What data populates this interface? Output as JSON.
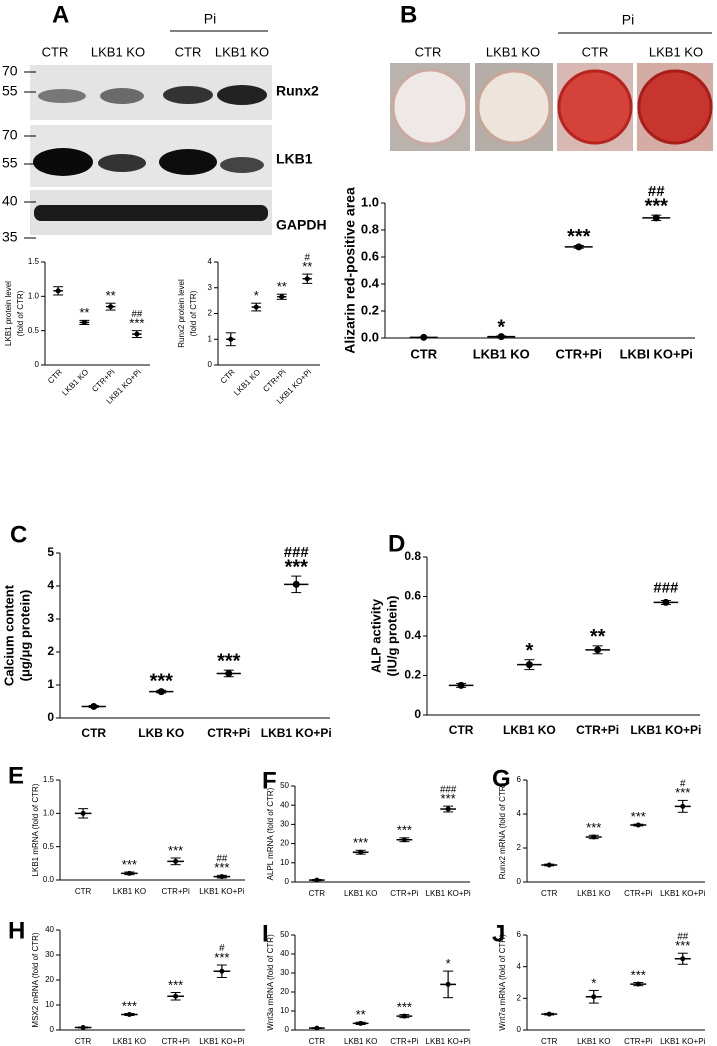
{
  "blot": {
    "letter": "A",
    "treatment": "Pi",
    "lanes": [
      "CTR",
      "LKB1 KO",
      "CTR",
      "LKB1 KO"
    ],
    "proteins": [
      "Runx2",
      "LKB1",
      "GAPDH"
    ],
    "markers": [
      "70",
      "55",
      "70",
      "55",
      "40",
      "35"
    ]
  },
  "wells": {
    "letter": "B",
    "treatment": "Pi",
    "lanes": [
      "CTR",
      "LKB1 KO",
      "CTR",
      "LKB1 KO"
    ]
  },
  "chart_data": [
    {
      "type": "dot",
      "ylabel": [
        "LKB1 protein level",
        "(fold of CTR)"
      ],
      "categories": [
        "CTR",
        "LKB1 KO",
        "CTR+Pi",
        "LKB1 KO+Pi"
      ],
      "values": [
        1.08,
        0.62,
        0.85,
        0.45
      ],
      "errors": [
        0.06,
        0.03,
        0.05,
        0.05
      ],
      "ylim": [
        0,
        1.5
      ],
      "yticks": [
        0,
        0.5,
        {
          "value": 1,
          "label": "1.0"
        },
        1.5
      ],
      "stars": [
        null,
        "**",
        "**",
        "***"
      ],
      "hashes": [
        null,
        null,
        null,
        "##"
      ],
      "color": "#000000"
    },
    {
      "type": "dot",
      "ylabel": [
        "Runx2 protein level",
        "(fold of CTR)"
      ],
      "categories": [
        "CTR",
        "LKB1 KO",
        "CTR+Pi",
        "LKB1 KO+Pi"
      ],
      "values": [
        1.0,
        2.25,
        2.65,
        3.35
      ],
      "errors": [
        0.25,
        0.15,
        0.1,
        0.18
      ],
      "ylim": [
        0,
        4
      ],
      "yticks": [
        0,
        1,
        2,
        3,
        4
      ],
      "stars": [
        null,
        "*",
        "**",
        "**"
      ],
      "hashes": [
        null,
        null,
        null,
        "#"
      ],
      "color": "#000000"
    },
    {
      "type": "dot",
      "ylabel": [
        "Alizarin red-positive area"
      ],
      "categories": [
        "CTR",
        "LKB1 KO",
        "CTR+Pi",
        "LKBI KO+Pi"
      ],
      "values": [
        0.005,
        0.01,
        0.675,
        0.89
      ],
      "errors": [
        0.002,
        0.005,
        0.01,
        0.02
      ],
      "ylim": [
        0,
        1.0
      ],
      "yticks": [
        {
          "value": 0,
          "label": "0.0"
        },
        0.2,
        0.4,
        0.6,
        0.8,
        {
          "value": 1,
          "label": "1.0"
        }
      ],
      "stars": [
        null,
        "*",
        "***",
        "***"
      ],
      "hashes": [
        null,
        null,
        null,
        "##"
      ],
      "color": "#000000"
    },
    {
      "type": "dot",
      "letter": "C",
      "ylabel": [
        "Calcium content",
        "(μg/μg protein)"
      ],
      "categories": [
        "CTR",
        "LKB KO",
        "CTR+Pi",
        "LKB1 KO+Pi"
      ],
      "values": [
        0.35,
        0.8,
        1.35,
        4.05
      ],
      "errors": [
        0.03,
        0.04,
        0.1,
        0.25
      ],
      "ylim": [
        0,
        5
      ],
      "yticks": [
        0,
        1,
        2,
        3,
        4,
        5
      ],
      "stars": [
        null,
        "***",
        "***",
        "***"
      ],
      "hashes": [
        null,
        null,
        null,
        "###"
      ],
      "color": "#000000"
    },
    {
      "type": "dot",
      "letter": "D",
      "ylabel": [
        "ALP activity",
        "(IU/g protein)"
      ],
      "categories": [
        "CTR",
        "LKB1 KO",
        "CTR+Pi",
        "LKB1 KO+Pi"
      ],
      "values": [
        0.15,
        0.255,
        0.33,
        0.57
      ],
      "errors": [
        0.01,
        0.025,
        0.02,
        0.01
      ],
      "ylim": [
        0,
        0.8
      ],
      "yticks": [
        0,
        0.2,
        0.4,
        0.6,
        0.8
      ],
      "stars": [
        null,
        "*",
        "**",
        null
      ],
      "hashes": [
        null,
        null,
        null,
        "###"
      ],
      "color": "#000000"
    },
    {
      "type": "dot",
      "letter": "E",
      "ylabel": [
        "LKB1 mRNA (fold of CTR)"
      ],
      "categories": [
        "CTR",
        "LKB1 KO",
        "CTR+Pi",
        "LKB1 KO+Pi"
      ],
      "values": [
        1.0,
        0.1,
        0.28,
        0.05
      ],
      "errors": [
        0.07,
        0.02,
        0.05,
        0.02
      ],
      "ylim": [
        0,
        1.5
      ],
      "yticks": [
        {
          "value": 0,
          "label": "0.0"
        },
        0.5,
        {
          "value": 1,
          "label": "1.0"
        },
        1.5
      ],
      "stars": [
        null,
        "***",
        "***",
        "***"
      ],
      "hashes": [
        null,
        null,
        null,
        "##"
      ],
      "color": "#000000"
    },
    {
      "type": "dot",
      "letter": "F",
      "ylabel": [
        "ALPL mRNA (fold of CTR)"
      ],
      "categories": [
        "CTR",
        "LKB1 KO",
        "CTR+Pi",
        "LKB1 KO+Pi"
      ],
      "values": [
        1,
        15.5,
        22,
        38
      ],
      "errors": [
        0.3,
        1,
        1,
        1.5
      ],
      "ylim": [
        0,
        50
      ],
      "yticks": [
        0,
        10,
        20,
        30,
        40,
        50
      ],
      "stars": [
        null,
        "***",
        "***",
        "***"
      ],
      "hashes": [
        null,
        null,
        null,
        "###"
      ],
      "color": "#000000"
    },
    {
      "type": "dot",
      "letter": "G",
      "ylabel": [
        "Runx2 mRNA (fold of CTR)"
      ],
      "categories": [
        "CTR",
        "LKB1 KO",
        "CTR+Pi",
        "LKB1 KO+Pi"
      ],
      "values": [
        1,
        2.65,
        3.35,
        4.45
      ],
      "errors": [
        0.05,
        0.1,
        0.05,
        0.35
      ],
      "ylim": [
        0,
        6
      ],
      "yticks": [
        0,
        2,
        4,
        6
      ],
      "stars": [
        null,
        "***",
        "***",
        "***"
      ],
      "hashes": [
        null,
        null,
        null,
        "#"
      ],
      "color": "#000000"
    },
    {
      "type": "dot",
      "letter": "H",
      "ylabel": [
        "MSX2 mRNA (fold of CTR)"
      ],
      "categories": [
        "CTR",
        "LKB1 KO",
        "CTR+Pi",
        "LKB1 KO+Pi"
      ],
      "values": [
        1,
        6.2,
        13.5,
        23.5
      ],
      "errors": [
        0.2,
        0.4,
        1.5,
        2.5
      ],
      "ylim": [
        0,
        40
      ],
      "yticks": [
        0,
        10,
        20,
        30,
        40
      ],
      "stars": [
        null,
        "***",
        "***",
        "***"
      ],
      "hashes": [
        null,
        null,
        null,
        "#"
      ],
      "color": "#000000"
    },
    {
      "type": "dot",
      "letter": "I",
      "ylabel": [
        "Wnt3a mRNA (fold of CTR)"
      ],
      "categories": [
        "CTR",
        "LKB1 KO",
        "CTR+Pi",
        "LKB1 KO+Pi"
      ],
      "values": [
        1,
        3.5,
        7.3,
        24
      ],
      "errors": [
        0.2,
        0.6,
        0.8,
        7
      ],
      "ylim": [
        0,
        50
      ],
      "yticks": [
        0,
        10,
        20,
        30,
        40,
        50
      ],
      "stars": [
        null,
        "**",
        "***",
        "*"
      ],
      "color": "#000000"
    },
    {
      "type": "dot",
      "letter": "J",
      "ylabel": [
        "Wnt7a mRNA (fold of CTR)"
      ],
      "categories": [
        "CTR",
        "LKB1 KO",
        "CTR+Pi",
        "LKB1 KO+Pi"
      ],
      "values": [
        1,
        2.1,
        2.9,
        4.5
      ],
      "errors": [
        0.05,
        0.4,
        0.1,
        0.35
      ],
      "ylim": [
        0,
        6
      ],
      "yticks": [
        0,
        2,
        4,
        6
      ],
      "stars": [
        null,
        "*",
        "***",
        "***"
      ],
      "hashes": [
        null,
        null,
        null,
        "##"
      ],
      "color": "#000000"
    }
  ]
}
